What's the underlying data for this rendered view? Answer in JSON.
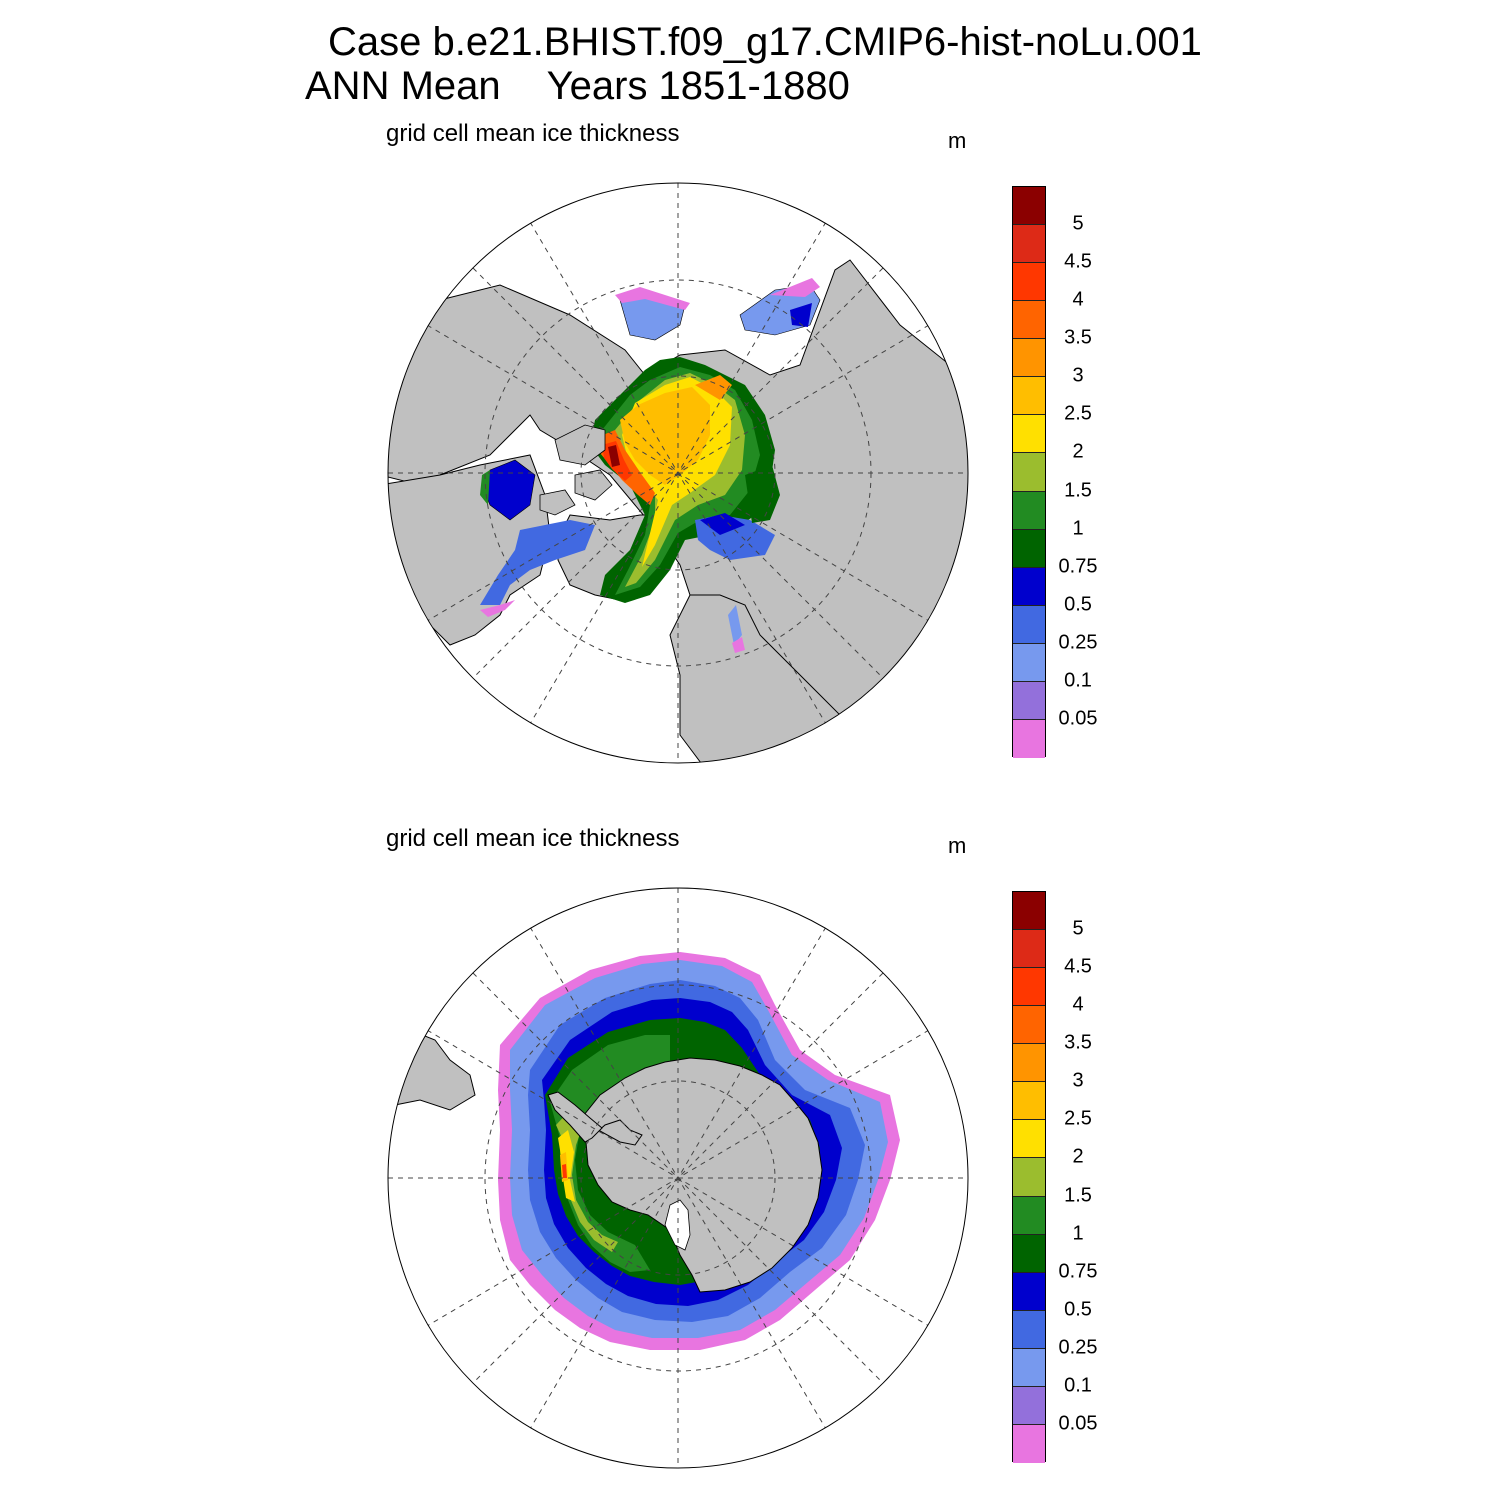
{
  "title": {
    "case": "Case b.e21.BHIST.f09_g17.CMIP6-hist-noLu.001",
    "period": "ANN Mean",
    "years": "Years 1851-1880"
  },
  "panels": [
    {
      "name": "north",
      "subtitle": "grid cell mean ice thickness",
      "units": "m"
    },
    {
      "name": "south",
      "subtitle": "grid cell mean ice thickness",
      "units": "m"
    }
  ],
  "colorbar": {
    "labels": [
      "5",
      "4.5",
      "4",
      "3.5",
      "3",
      "2.5",
      "2",
      "1.5",
      "1",
      "0.75",
      "0.5",
      "0.25",
      "0.1",
      "0.05"
    ],
    "colors": [
      "#8b0000",
      "#dd2a17",
      "#ff3700",
      "#ff6400",
      "#ff9400",
      "#ffbe00",
      "#ffe000",
      "#9bbd2e",
      "#228b22",
      "#006400",
      "#0000cd",
      "#4169e1",
      "#7799ee",
      "#9370db",
      "#e875e0"
    ]
  },
  "map_colors": {
    "land": "#c0c0c0",
    "ocean": "#ffffff"
  }
}
